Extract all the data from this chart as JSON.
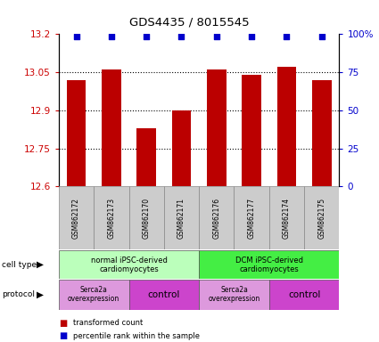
{
  "title": "GDS4435 / 8015545",
  "samples": [
    "GSM862172",
    "GSM862173",
    "GSM862170",
    "GSM862171",
    "GSM862176",
    "GSM862177",
    "GSM862174",
    "GSM862175"
  ],
  "bar_values": [
    13.02,
    13.06,
    12.83,
    12.9,
    13.06,
    13.04,
    13.07,
    13.02
  ],
  "ylim": [
    12.6,
    13.2
  ],
  "yticks": [
    12.6,
    12.75,
    12.9,
    13.05,
    13.2
  ],
  "ytick_labels": [
    "12.6",
    "12.75",
    "12.9",
    "13.05",
    "13.2"
  ],
  "right_yticks": [
    0,
    25,
    50,
    75,
    100
  ],
  "right_ytick_labels": [
    "0",
    "25",
    "50",
    "75",
    "100%"
  ],
  "bar_color": "#bb0000",
  "scatter_color": "#0000cc",
  "cell_type_groups": [
    {
      "label": "normal iPSC-derived\ncardiomyocytes",
      "start": 0,
      "end": 4,
      "color": "#bbffbb"
    },
    {
      "label": "DCM iPSC-derived\ncardiomyocytes",
      "start": 4,
      "end": 8,
      "color": "#44ee44"
    }
  ],
  "protocol_groups": [
    {
      "label": "Serca2a\noverexpression",
      "start": 0,
      "end": 2,
      "color": "#dd99dd"
    },
    {
      "label": "control",
      "start": 2,
      "end": 4,
      "color": "#cc44cc"
    },
    {
      "label": "Serca2a\noverexpression",
      "start": 4,
      "end": 6,
      "color": "#dd99dd"
    },
    {
      "label": "control",
      "start": 6,
      "end": 8,
      "color": "#cc44cc"
    }
  ],
  "cell_type_label": "cell type",
  "protocol_label": "protocol",
  "legend_bar_label": "transformed count",
  "legend_scatter_label": "percentile rank within the sample",
  "background_color": "#ffffff",
  "tick_color_left": "#cc0000",
  "tick_color_right": "#0000cc",
  "sample_box_color": "#cccccc",
  "grid_ticks": [
    13.05,
    12.9,
    12.75
  ]
}
